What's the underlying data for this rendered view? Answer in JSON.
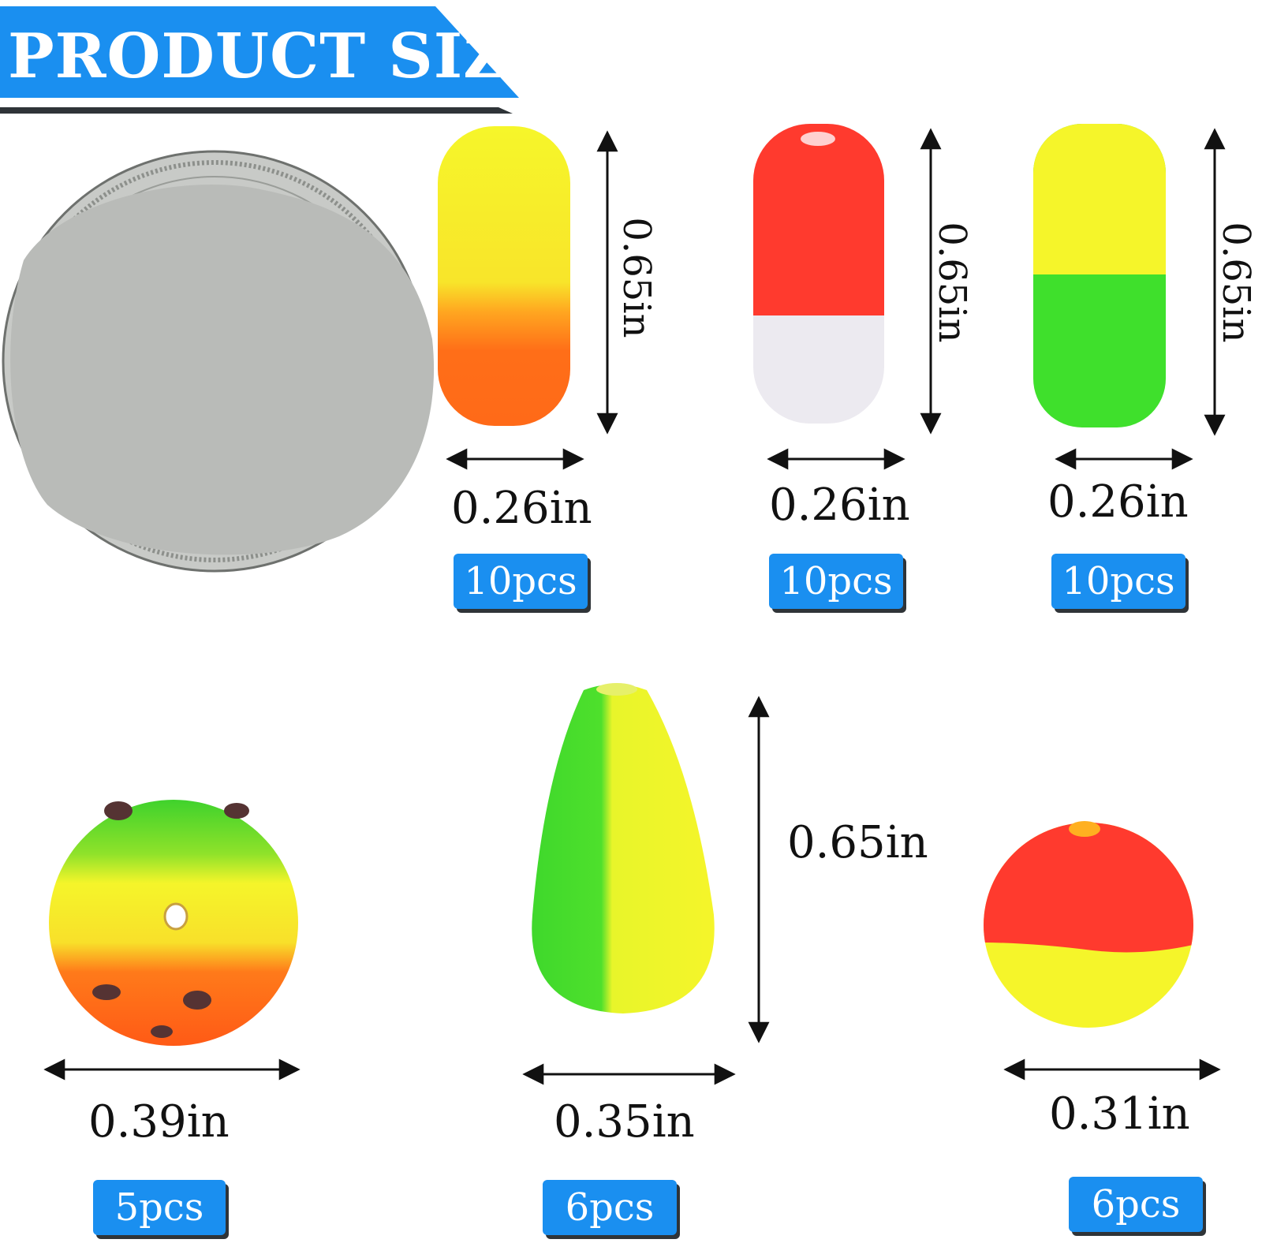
{
  "header": {
    "title": "PRODUCT SIZE"
  },
  "colors": {
    "banner_blue": "#1a8ff0",
    "banner_shadow": "#2f3438",
    "yellow": "#f5f52a",
    "orange": "#ff6a18",
    "red": "#ff3a2e",
    "white_part": "#eceaf0",
    "green": "#3fe02c",
    "coin_gray": "#b9bbb8"
  },
  "products": [
    {
      "name_icon": "yellow-orange-capsule-float-icon",
      "height": "0.65in",
      "width": "0.26in",
      "count": "10pcs"
    },
    {
      "name_icon": "red-white-capsule-float-icon",
      "height": "0.65in",
      "width": "0.26in",
      "count": "10pcs"
    },
    {
      "name_icon": "yellow-green-capsule-float-icon",
      "height": "0.65in",
      "width": "0.26in",
      "count": "10pcs"
    },
    {
      "name_icon": "green-yellow-orange-ball-float-icon",
      "width": "0.39in",
      "count": "5pcs"
    },
    {
      "name_icon": "green-yellow-teardrop-float-icon",
      "height": "0.65in",
      "width": "0.35in",
      "count": "6pcs"
    },
    {
      "name_icon": "red-yellow-ball-float-icon",
      "width": "0.31in",
      "count": "6pcs"
    }
  ]
}
